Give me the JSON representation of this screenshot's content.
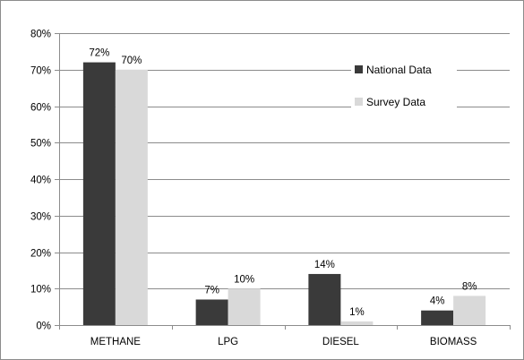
{
  "chart_data": {
    "type": "bar",
    "categories": [
      "METHANE",
      "LPG",
      "DIESEL",
      "BIOMASS"
    ],
    "series": [
      {
        "name": "National Data",
        "values": [
          72,
          7,
          14,
          4
        ],
        "labels": [
          "72%",
          "7%",
          "14%",
          "4%"
        ],
        "color": "#3a3a3a"
      },
      {
        "name": "Survey Data",
        "values": [
          70,
          10,
          1,
          8
        ],
        "labels": [
          "70%",
          "10%",
          "1%",
          "8%"
        ],
        "color": "#d9d9d9"
      }
    ],
    "y_ticks": [
      0,
      10,
      20,
      30,
      40,
      50,
      60,
      70,
      80
    ],
    "y_tick_labels": [
      "0%",
      "10%",
      "20%",
      "30%",
      "40%",
      "50%",
      "60%",
      "70%",
      "80%"
    ],
    "ylim": [
      0,
      80
    ],
    "title": "",
    "xlabel": "",
    "ylabel": "",
    "grid": true,
    "legend_position": "top-right",
    "colors": {
      "grid": "#8c8c8c",
      "axis": "#8c8c8c",
      "border": "#8c8c8c"
    }
  }
}
